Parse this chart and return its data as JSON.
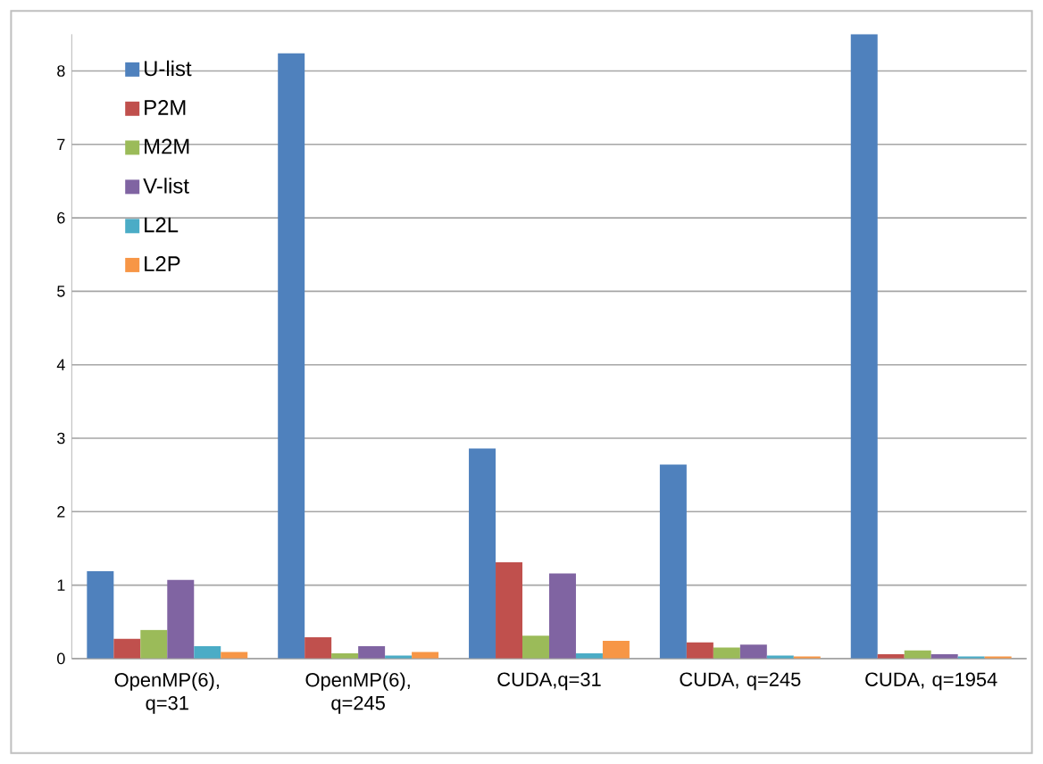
{
  "chart_data": {
    "type": "bar",
    "categories": [
      "OpenMP(6), q=31",
      "OpenMP(6), q=245",
      "CUDA,q=31",
      "CUDA, q=245",
      "CUDA, q=1954"
    ],
    "series": [
      {
        "name": "U-list",
        "color": "#4f81bd",
        "values": [
          1.19,
          8.24,
          2.86,
          2.64,
          8.5
        ]
      },
      {
        "name": "P2M",
        "color": "#c0504d",
        "values": [
          0.27,
          0.29,
          1.31,
          0.22,
          0.06
        ]
      },
      {
        "name": "M2M",
        "color": "#9bbb59",
        "values": [
          0.39,
          0.07,
          0.31,
          0.15,
          0.11
        ]
      },
      {
        "name": "V-list",
        "color": "#8064a2",
        "values": [
          1.07,
          0.17,
          1.16,
          0.19,
          0.06
        ]
      },
      {
        "name": "L2L",
        "color": "#4bacc6",
        "values": [
          0.17,
          0.04,
          0.07,
          0.04,
          0.03
        ]
      },
      {
        "name": "L2P",
        "color": "#f79646",
        "values": [
          0.09,
          0.09,
          0.24,
          0.03,
          0.03
        ]
      }
    ],
    "ylim": [
      0,
      8.5
    ],
    "yticks": [
      0,
      1,
      2,
      3,
      4,
      5,
      6,
      7,
      8
    ],
    "grid": "y",
    "legend": "top left"
  }
}
